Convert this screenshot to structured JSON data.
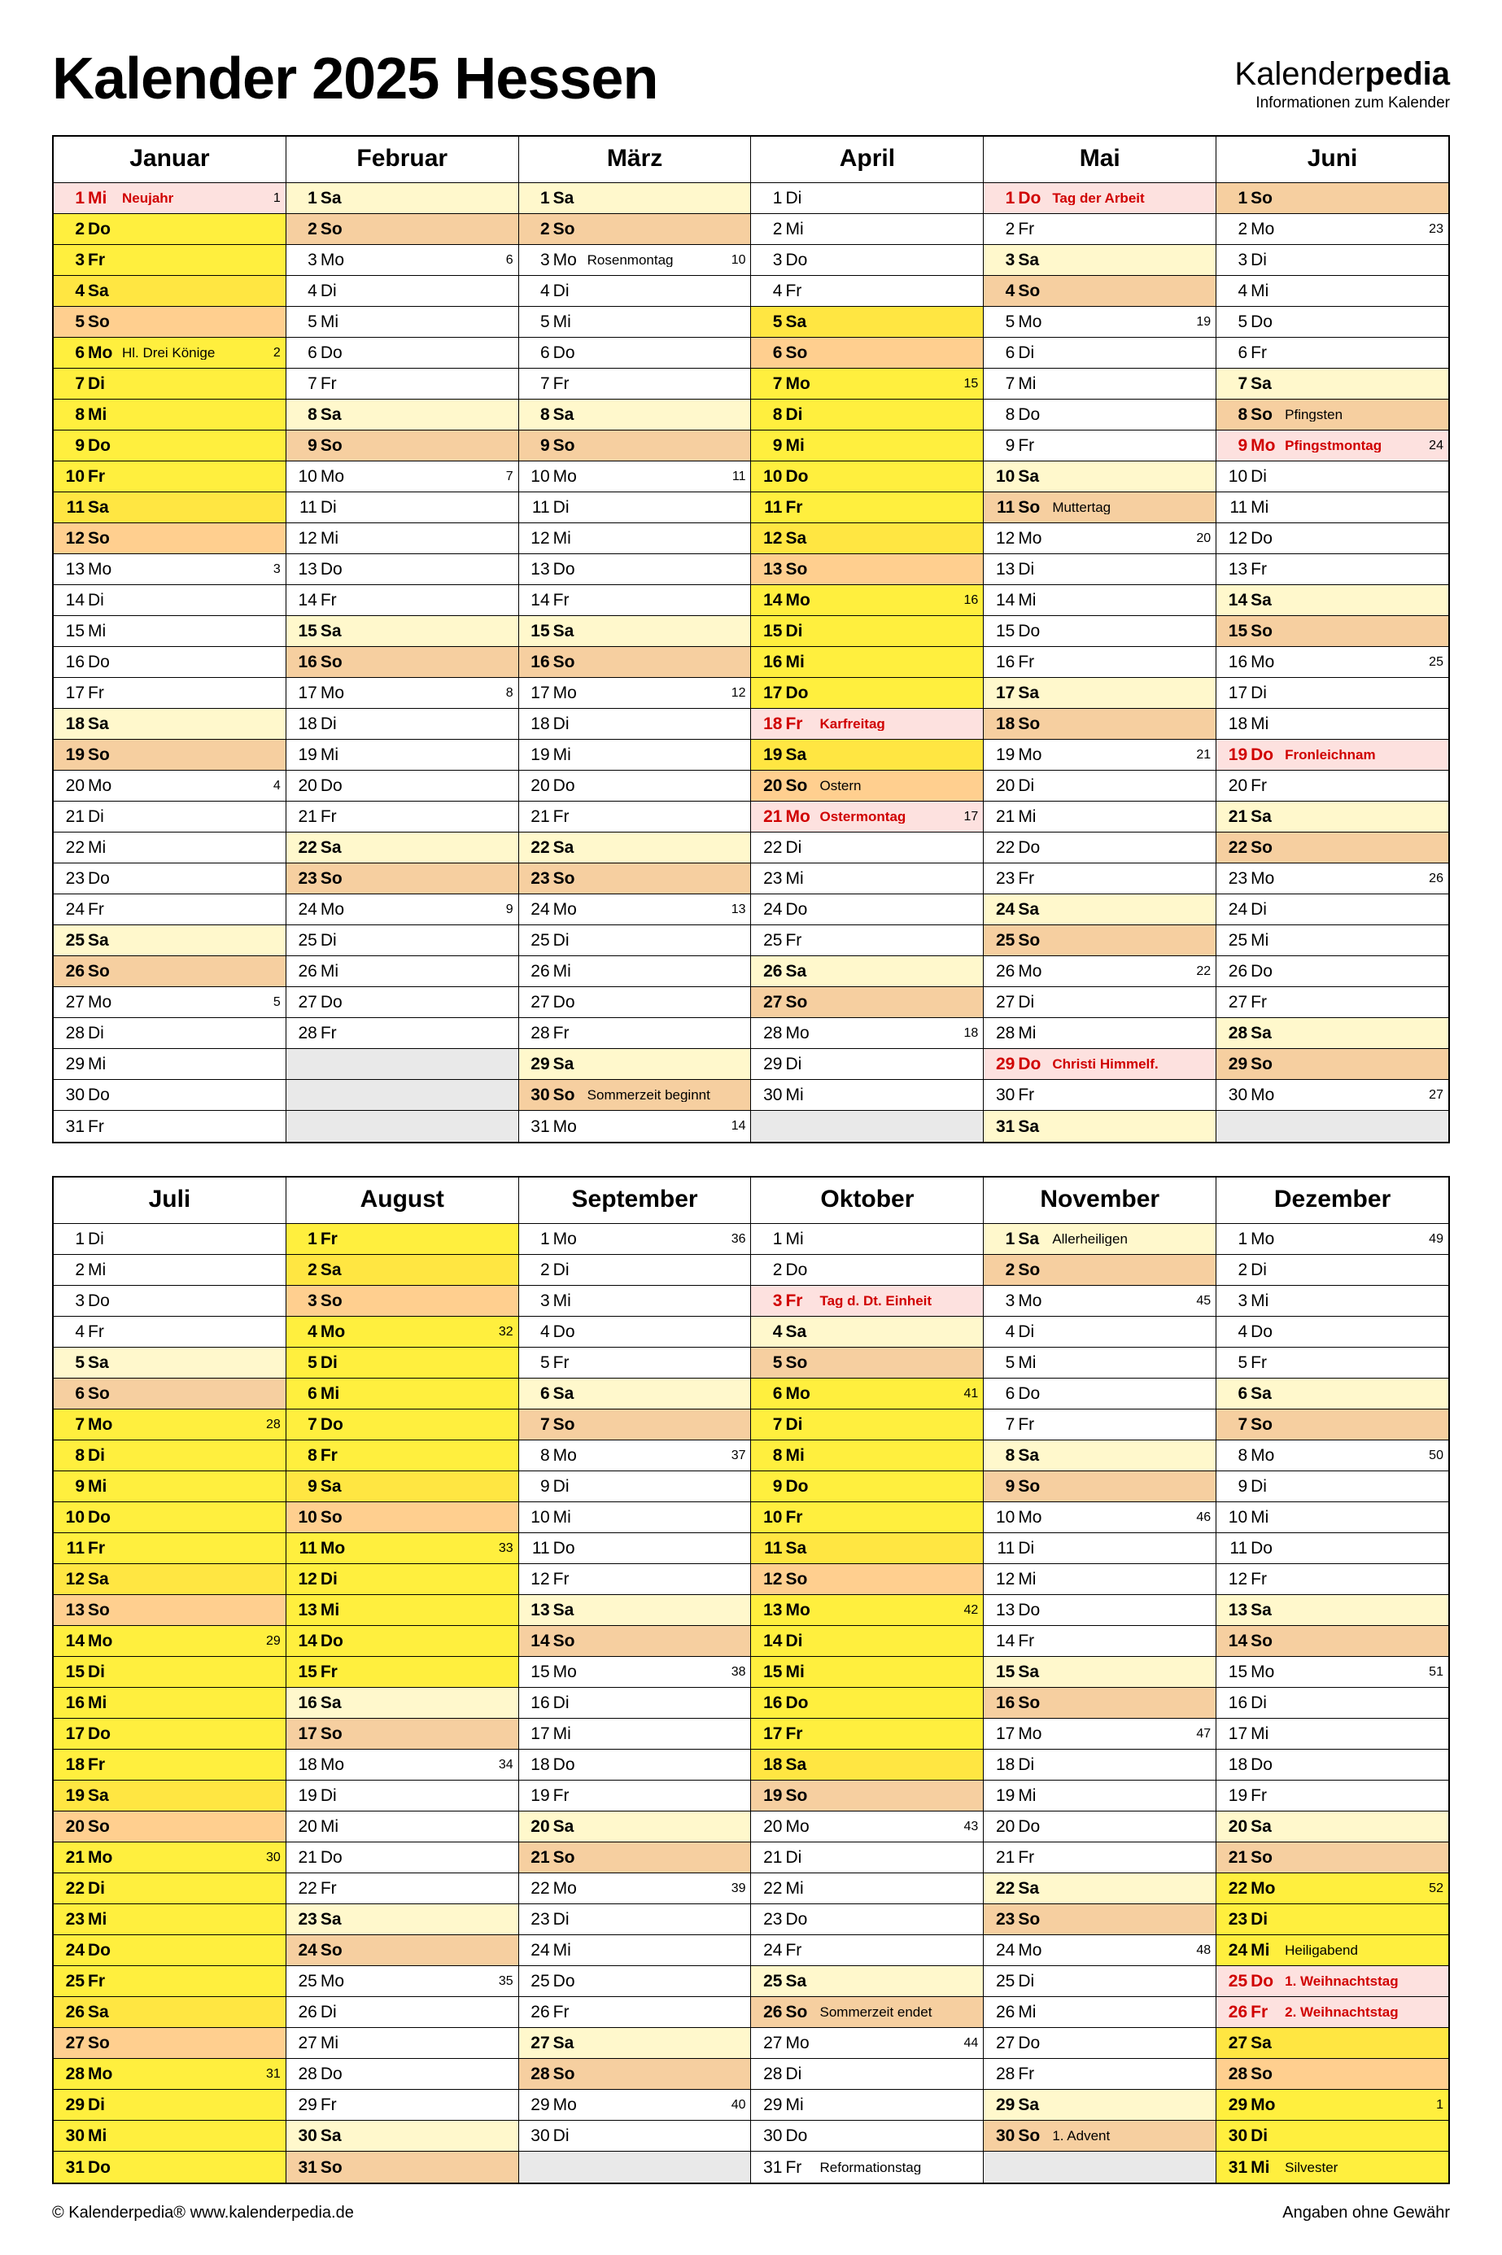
{
  "title": "Kalender 2025 Hessen",
  "brand": {
    "part1": "Kalender",
    "part2": "pedia",
    "tagline": "Informationen zum Kalender"
  },
  "footer": {
    "left": "© Kalenderpedia®   www.kalenderpedia.de",
    "right": "Angaben ohne Gewähr"
  },
  "colors": {
    "white": "#ffffff",
    "sat_light": "#fff8cc",
    "sun_peach": "#f6cfa0",
    "vac_yellow": "#ffef3e",
    "vac_sat": "#ffe642",
    "vac_sun": "#ffcf8f",
    "holiday_bg": "#fde1df",
    "empty": "#e9e9e9"
  },
  "months": [
    {
      "name": "Januar",
      "first_dow": 2,
      "ndays": 31,
      "holidays": {
        "1": "Neujahr"
      },
      "notes": {
        "6": "Hl. Drei Könige"
      },
      "weeks": {
        "1": 1,
        "6": 2,
        "13": 3,
        "20": 4,
        "27": 5
      },
      "vac": [
        [
          1,
          12
        ]
      ]
    },
    {
      "name": "Februar",
      "first_dow": 5,
      "ndays": 28,
      "weeks": {
        "3": 6,
        "10": 7,
        "17": 8,
        "24": 9
      }
    },
    {
      "name": "März",
      "first_dow": 5,
      "ndays": 31,
      "notes": {
        "3": "Rosenmontag",
        "30": "Sommerzeit beginnt"
      },
      "weeks": {
        "3": 10,
        "10": 11,
        "17": 12,
        "24": 13,
        "31": 14
      }
    },
    {
      "name": "April",
      "first_dow": 1,
      "ndays": 30,
      "holidays": {
        "18": "Karfreitag",
        "21": "Ostermontag"
      },
      "notes": {
        "20": "Ostern"
      },
      "weeks": {
        "7": 15,
        "14": 16,
        "21": 17,
        "28": 18
      },
      "vac": [
        [
          5,
          21
        ]
      ]
    },
    {
      "name": "Mai",
      "first_dow": 3,
      "ndays": 31,
      "holidays": {
        "1": "Tag der Arbeit",
        "29": "Christi Himmelf."
      },
      "notes": {
        "11": "Muttertag"
      },
      "weeks": {
        "5": 19,
        "12": 20,
        "19": 21,
        "26": 22
      }
    },
    {
      "name": "Juni",
      "first_dow": 6,
      "ndays": 30,
      "holidays": {
        "9": "Pfingstmontag",
        "19": "Fronleichnam"
      },
      "notes": {
        "8": "Pfingsten"
      },
      "weeks": {
        "2": 23,
        "9": 24,
        "16": 25,
        "23": 26,
        "30": 27
      }
    },
    {
      "name": "Juli",
      "first_dow": 1,
      "ndays": 31,
      "weeks": {
        "7": 28,
        "14": 29,
        "21": 30,
        "28": 31
      },
      "vac": [
        [
          7,
          31
        ]
      ]
    },
    {
      "name": "August",
      "first_dow": 4,
      "ndays": 31,
      "weeks": {
        "4": 32,
        "11": 33,
        "18": 34,
        "25": 35
      },
      "vac": [
        [
          1,
          15
        ]
      ]
    },
    {
      "name": "September",
      "first_dow": 0,
      "ndays": 30,
      "weeks": {
        "1": 36,
        "8": 37,
        "15": 38,
        "22": 39,
        "29": 40
      }
    },
    {
      "name": "Oktober",
      "first_dow": 2,
      "ndays": 31,
      "holidays": {
        "3": "Tag d. Dt. Einheit"
      },
      "notes": {
        "26": "Sommerzeit endet",
        "31": "Reformationstag"
      },
      "weeks": {
        "6": 41,
        "13": 42,
        "20": 43,
        "27": 44
      },
      "vac": [
        [
          6,
          18
        ]
      ]
    },
    {
      "name": "November",
      "first_dow": 5,
      "ndays": 30,
      "notes": {
        "1": "Allerheiligen",
        "30": "1. Advent"
      },
      "weeks": {
        "3": 45,
        "10": 46,
        "17": 47,
        "24": 48
      }
    },
    {
      "name": "Dezember",
      "first_dow": 0,
      "ndays": 31,
      "holidays": {
        "25": "1. Weihnachtstag",
        "26": "2. Weihnachtstag"
      },
      "notes": {
        "24": "Heiligabend",
        "31": "Silvester"
      },
      "weeks": {
        "1": 49,
        "8": 50,
        "15": 51,
        "22": 52,
        "29": 1
      },
      "vac": [
        [
          22,
          31
        ]
      ]
    }
  ],
  "dow_labels": [
    "Mo",
    "Di",
    "Mi",
    "Do",
    "Fr",
    "Sa",
    "So"
  ]
}
